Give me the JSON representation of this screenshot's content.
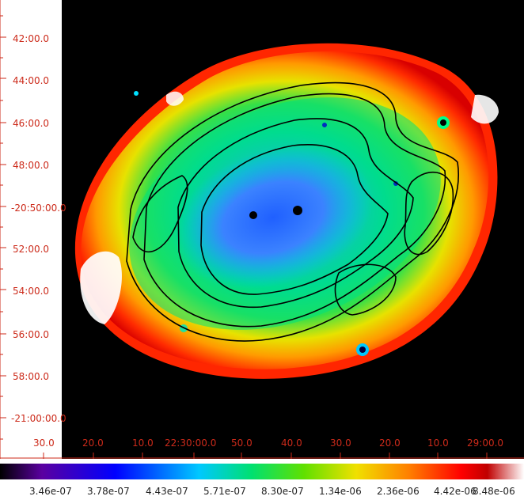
{
  "y_axis_labels": [
    "42:00.0",
    "44:00.0",
    "46:00.0",
    "48:00.0",
    "-20:50:00.0",
    "52:00.0",
    "54:00.0",
    "56:00.0",
    "58:00.0",
    "-21:00:00.0"
  ],
  "x_axis_labels": [
    "30.0",
    "20.0",
    "10.0",
    "22:30:00.0",
    "50.0",
    "40.0",
    "30.0",
    "20.0",
    "10.0",
    "29:00.0"
  ],
  "colorbar_labels": [
    "3.46e-07",
    "3.78e-07",
    "4.43e-07",
    "5.71e-07",
    "8.30e-07",
    "1.34e-06",
    "2.36e-06",
    "4.42e-06",
    "8.48e-06"
  ],
  "colors": {
    "tick": "#cc2a1a",
    "background": "#000000",
    "colorbar_stops": [
      "#000000",
      "#5a00a0",
      "#0000ff",
      "#00c8ff",
      "#00e070",
      "#60e000",
      "#f0e000",
      "#ff8000",
      "#ff0000",
      "#c00000",
      "#ffffff"
    ]
  }
}
